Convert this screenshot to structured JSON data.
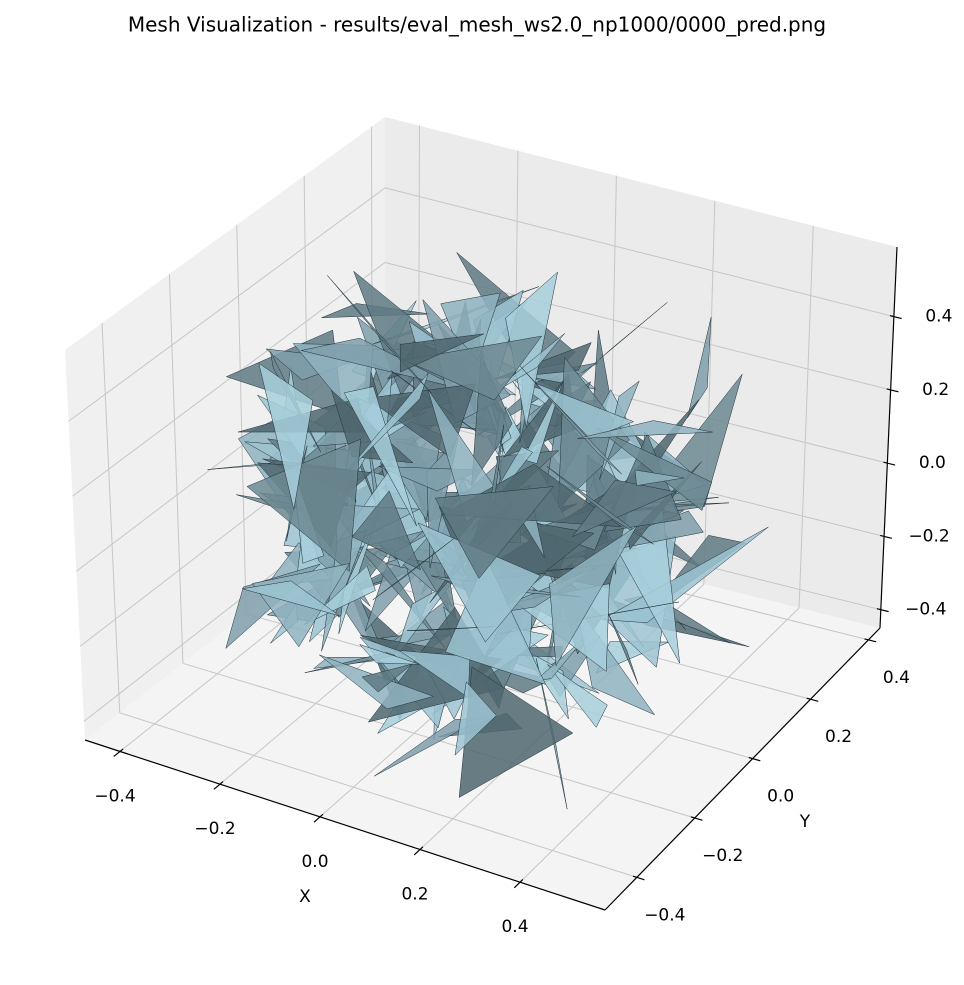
{
  "chart_data": {
    "type": "mesh3d",
    "title": "Mesh Visualization - results/eval_mesh_ws2.0_np1000/0000_pred.png",
    "xlabel": "X",
    "ylabel": "Y",
    "xlim": [
      -0.47,
      0.57
    ],
    "ylim": [
      -0.51,
      0.44
    ],
    "zlim": [
      -0.45,
      0.59
    ],
    "xticks": [
      {
        "value": -0.4,
        "label": "−0.4"
      },
      {
        "value": -0.2,
        "label": "−0.2"
      },
      {
        "value": 0,
        "label": "0.0"
      },
      {
        "value": 0.2,
        "label": "0.2"
      },
      {
        "value": 0.4,
        "label": "0.4"
      }
    ],
    "yticks": [
      {
        "value": -0.4,
        "label": "−0.4"
      },
      {
        "value": -0.2,
        "label": "−0.2"
      },
      {
        "value": 0,
        "label": "0.0"
      },
      {
        "value": 0.2,
        "label": "0.2"
      },
      {
        "value": 0.4,
        "label": "0.4"
      }
    ],
    "zticks": [
      {
        "value": -0.4,
        "label": "−0.4"
      },
      {
        "value": -0.2,
        "label": "−0.2"
      },
      {
        "value": 0,
        "label": "0.0"
      },
      {
        "value": 0.2,
        "label": "0.2"
      },
      {
        "value": 0.4,
        "label": "0.4"
      }
    ],
    "grid": true,
    "color": "#9cc3d1"
  }
}
